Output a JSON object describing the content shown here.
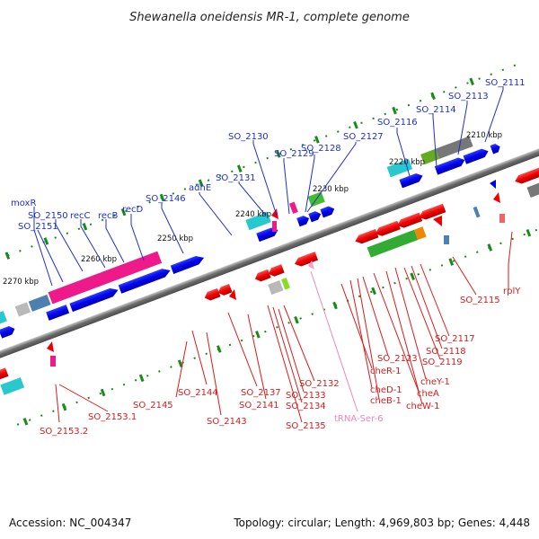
{
  "header": {
    "title": "Shewanella oneidensis MR-1, complete genome"
  },
  "footer": {
    "accession": "Accession: NC_004347",
    "summary": "Topology: circular; Length: 4,969,803 bp; Genes: 4,448"
  },
  "colors": {
    "backbone": "#7f7f7f",
    "forward_gene": "#0000ee",
    "reverse_gene": "#ee0000",
    "tick": "#1a8a1a",
    "label_forward": "#1e2fd0",
    "label_reverse": "#d81b1b",
    "label_trna": "#ee88bb"
  },
  "scale": {
    "kbp_labels": [
      "2270 kbp",
      "2260 kbp",
      "2250 kbp",
      "2240 kbp",
      "2230 kbp",
      "2220 kbp",
      "2210 kbp"
    ]
  },
  "genes": {
    "forward_labels": [
      "moxR",
      "SO_2151",
      "SO_2150",
      "recC",
      "recB",
      "recD",
      "SO_2146",
      "adhE",
      "SO_2131",
      "SO_2130",
      "SO_2129",
      "SO_2128",
      "SO_2127",
      "SO_2116",
      "SO_2114",
      "SO_2113",
      "SO_2111"
    ],
    "reverse_labels": [
      "SO_2153.2",
      "SO_2153.1",
      "SO_2145",
      "SO_2144",
      "SO_2143",
      "SO_2141",
      "SO_2137",
      "SO_2135",
      "SO_2134",
      "SO_2133",
      "SO_2132",
      "cheR-1",
      "cheD-1",
      "cheB-1",
      "SO_2123",
      "cheA",
      "cheW-1",
      "cheY-1",
      "SO_2119",
      "SO_2118",
      "SO_2117",
      "SO_2115",
      "rplY"
    ],
    "trna_labels": [
      "tRNA-Ser-6"
    ]
  }
}
